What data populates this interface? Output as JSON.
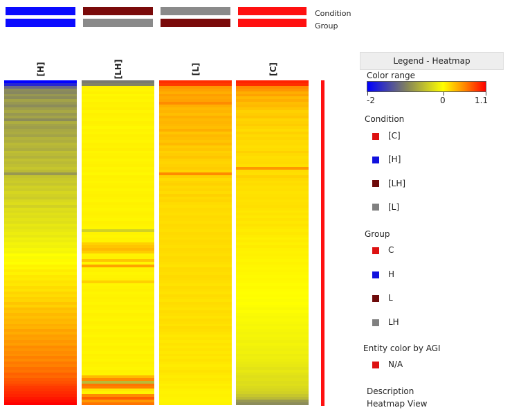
{
  "top_bars": {
    "condition_label": "Condition",
    "group_label": "Group",
    "condition_colors": [
      "#0b0bff",
      "#7a0a0a",
      "#8a8a8a",
      "#ff1010"
    ],
    "group_colors": [
      "#0b0bff",
      "#8a8a8a",
      "#7a0a0a",
      "#ff1010"
    ]
  },
  "chart_data": {
    "type": "heatmap",
    "columns": [
      "[H]",
      "[LH]",
      "[L]",
      "[C]"
    ],
    "color_scale": {
      "min": -2,
      "mid": 0,
      "max": 1.1,
      "colors": [
        "#0000ff",
        "#ffff00",
        "#ff0000"
      ]
    },
    "rows_shown": "approximately 120 entities (estimated expression values)",
    "values": {
      "[H]": [
        -2,
        -1.6,
        -0.9,
        -0.5,
        -0.55,
        -0.45,
        -0.5,
        -0.4,
        -0.45,
        -0.5,
        -0.42,
        -0.38,
        -0.45,
        -0.4,
        -0.5,
        -0.35,
        -0.4,
        -0.42,
        -0.38,
        -0.36,
        -0.4,
        -0.33,
        -0.35,
        -0.3,
        -0.32,
        -0.35,
        -0.28,
        -0.3,
        -0.33,
        -0.27,
        -0.3,
        -0.28,
        -0.25,
        -0.3,
        -0.45,
        -0.26,
        -0.24,
        -0.22,
        -0.25,
        -0.2,
        -0.22,
        -0.18,
        -0.2,
        -0.22,
        -0.17,
        -0.15,
        -0.2,
        -0.14,
        -0.16,
        -0.13,
        -0.15,
        -0.12,
        -0.14,
        -0.1,
        -0.12,
        -0.1,
        -0.08,
        -0.1,
        -0.06,
        -0.08,
        -0.05,
        -0.06,
        -0.03,
        -0.05,
        0,
        -0.02,
        0.02,
        0,
        0.05,
        0.03,
        0.08,
        0.05,
        0.1,
        0.08,
        0.12,
        0.1,
        0.15,
        0.12,
        0.18,
        0.15,
        0.2,
        0.18,
        0.25,
        0.2,
        0.28,
        0.25,
        0.3,
        0.27,
        0.32,
        0.3,
        0.35,
        0.33,
        0.4,
        0.36,
        0.42,
        0.4,
        0.45,
        0.42,
        0.5,
        0.46,
        0.5,
        0.48,
        0.55,
        0.5,
        0.58,
        0.55,
        0.62,
        0.6,
        0.68,
        0.65,
        0.72,
        0.75,
        0.8,
        0.85,
        0.88,
        0.92,
        0.95,
        1.0,
        1.05,
        1.1
      ],
      "[LH]": [
        -0.7,
        -0.6,
        0.05,
        0.04,
        0.06,
        0.03,
        0.05,
        0.04,
        0.06,
        0.05,
        0.07,
        0.04,
        0.06,
        0.05,
        0.04,
        0.06,
        0.05,
        0.03,
        0.05,
        0.04,
        0.06,
        0.05,
        0.04,
        0.06,
        0.05,
        0.07,
        0.04,
        0.05,
        0.06,
        0.04,
        0.05,
        0.06,
        0.04,
        0.05,
        0.03,
        0.06,
        0.05,
        0.04,
        0.05,
        0.06,
        0.04,
        0.05,
        0.06,
        0.05,
        0.04,
        0.06,
        0.05,
        0.04,
        0.05,
        0.06,
        0.05,
        0.04,
        0.06,
        0.05,
        0.04,
        -0.2,
        0.05,
        0.04,
        0.06,
        0.05,
        0.2,
        0.25,
        0.3,
        0.22,
        0.05,
        0.06,
        0.25,
        0.04,
        0.4,
        0.05,
        0.06,
        0.04,
        0.05,
        0.06,
        0.2,
        0.04,
        0.05,
        0.06,
        0.04,
        0.05,
        0.06,
        0.05,
        0.04,
        0.06,
        0.05,
        0.04,
        0.06,
        0.05,
        0.04,
        0.06,
        0.05,
        0.04,
        0.06,
        0.05,
        0.04,
        0.06,
        0.05,
        0.04,
        0.06,
        0.05,
        0.04,
        0.06,
        0.05,
        0.04,
        0.06,
        0.05,
        0.04,
        0.06,
        0.05,
        0.3,
        0.5,
        -0.3,
        0.6,
        0.55,
        0.1,
        0.05,
        0.5,
        0.7,
        0.45,
        0.6
      ],
      "[L]": [
        0.9,
        0.85,
        0.45,
        0.4,
        0.35,
        0.42,
        0.38,
        0.4,
        0.5,
        0.35,
        0.3,
        0.32,
        0.28,
        0.35,
        0.3,
        0.32,
        0.3,
        0.28,
        0.35,
        0.25,
        0.3,
        0.28,
        0.25,
        0.3,
        0.22,
        0.25,
        0.2,
        0.22,
        0.25,
        0.2,
        0.18,
        0.2,
        0.22,
        0.18,
        0.5,
        0.2,
        0.15,
        0.18,
        0.2,
        0.16,
        0.18,
        0.15,
        0.2,
        0.16,
        0.18,
        0.15,
        0.14,
        0.16,
        0.15,
        0.14,
        0.16,
        0.15,
        0.14,
        0.16,
        0.15,
        0.14,
        0.16,
        0.15,
        0.14,
        0.16,
        0.15,
        0.14,
        0.16,
        0.15,
        0.14,
        0.16,
        0.15,
        0.14,
        0.12,
        0.16,
        0.15,
        0.14,
        0.16,
        0.15,
        0.14,
        0.12,
        0.15,
        0.14,
        0.12,
        0.15,
        0.14,
        0.12,
        0.15,
        0.14,
        0.12,
        0.15,
        0.14,
        0.12,
        0.15,
        0.14,
        0.12,
        0.15,
        0.14,
        0.12,
        0.1,
        0.12,
        0.1,
        0.12,
        0.1,
        0.12,
        0.1,
        0.12,
        0.1,
        0.12,
        0.1,
        0.08,
        0.1,
        0.12,
        0.1,
        0.08,
        0.1,
        0.08,
        0.06,
        0.08,
        0.06,
        0.05,
        0.06,
        0.05,
        0.04,
        0.05
      ],
      "[C]": [
        0.95,
        0.9,
        0.5,
        0.45,
        0.35,
        0.4,
        0.3,
        0.35,
        0.28,
        0.3,
        0.25,
        0.2,
        0.22,
        0.25,
        0.18,
        0.2,
        0.22,
        0.18,
        0.15,
        0.2,
        0.16,
        0.18,
        0.15,
        0.16,
        0.14,
        0.15,
        0.2,
        0.16,
        0.14,
        0.15,
        0.16,
        0.14,
        0.45,
        0.15,
        0.14,
        0.2,
        0.16,
        0.14,
        0.15,
        0.13,
        0.14,
        0.12,
        0.13,
        0.14,
        0.12,
        0.13,
        0.14,
        0.12,
        0.1,
        0.12,
        0.1,
        0.12,
        0.1,
        0.12,
        0.1,
        0.08,
        0.1,
        0.08,
        0.06,
        0.08,
        0.06,
        0.08,
        0.06,
        0.05,
        0.06,
        0.05,
        0.04,
        0.05,
        0.04,
        0.03,
        0.04,
        0.03,
        0.02,
        0.03,
        0.02,
        0.01,
        0.02,
        0.01,
        0.0,
        0.01,
        0.0,
        -0.01,
        0.0,
        -0.01,
        -0.02,
        -0.01,
        -0.02,
        -0.03,
        -0.02,
        -0.03,
        -0.04,
        -0.03,
        -0.04,
        -0.05,
        -0.04,
        -0.05,
        -0.06,
        -0.05,
        -0.06,
        -0.07,
        -0.06,
        -0.08,
        -0.07,
        -0.08,
        -0.09,
        -0.1,
        -0.12,
        -0.1,
        -0.12,
        -0.14,
        -0.13,
        -0.15,
        -0.14,
        -0.16,
        -0.18,
        -0.2,
        -0.25,
        -0.3,
        -0.45,
        -0.5
      ]
    }
  },
  "legend": {
    "title": "Legend - Heatmap",
    "color_range_label": "Color range",
    "ticks": [
      "-2",
      "0",
      "1.1"
    ],
    "condition_heading": "Condition",
    "condition_items": [
      {
        "label": "[C]",
        "color": "#dd1111"
      },
      {
        "label": "[H]",
        "color": "#1111dd"
      },
      {
        "label": "[LH]",
        "color": "#6e0a0a"
      },
      {
        "label": "[L]",
        "color": "#808080"
      }
    ],
    "group_heading": "Group",
    "group_items": [
      {
        "label": "C",
        "color": "#dd1111"
      },
      {
        "label": "H",
        "color": "#1111dd"
      },
      {
        "label": "L",
        "color": "#6e0a0a"
      },
      {
        "label": "LH",
        "color": "#808080"
      }
    ],
    "entity_heading": "Entity color by AGI",
    "entity_items": [
      {
        "label": "N/A",
        "color": "#dd1111"
      }
    ],
    "entity_bar_color": "#ff1010",
    "description_heading": "Description",
    "description_value": "Heatmap View"
  }
}
